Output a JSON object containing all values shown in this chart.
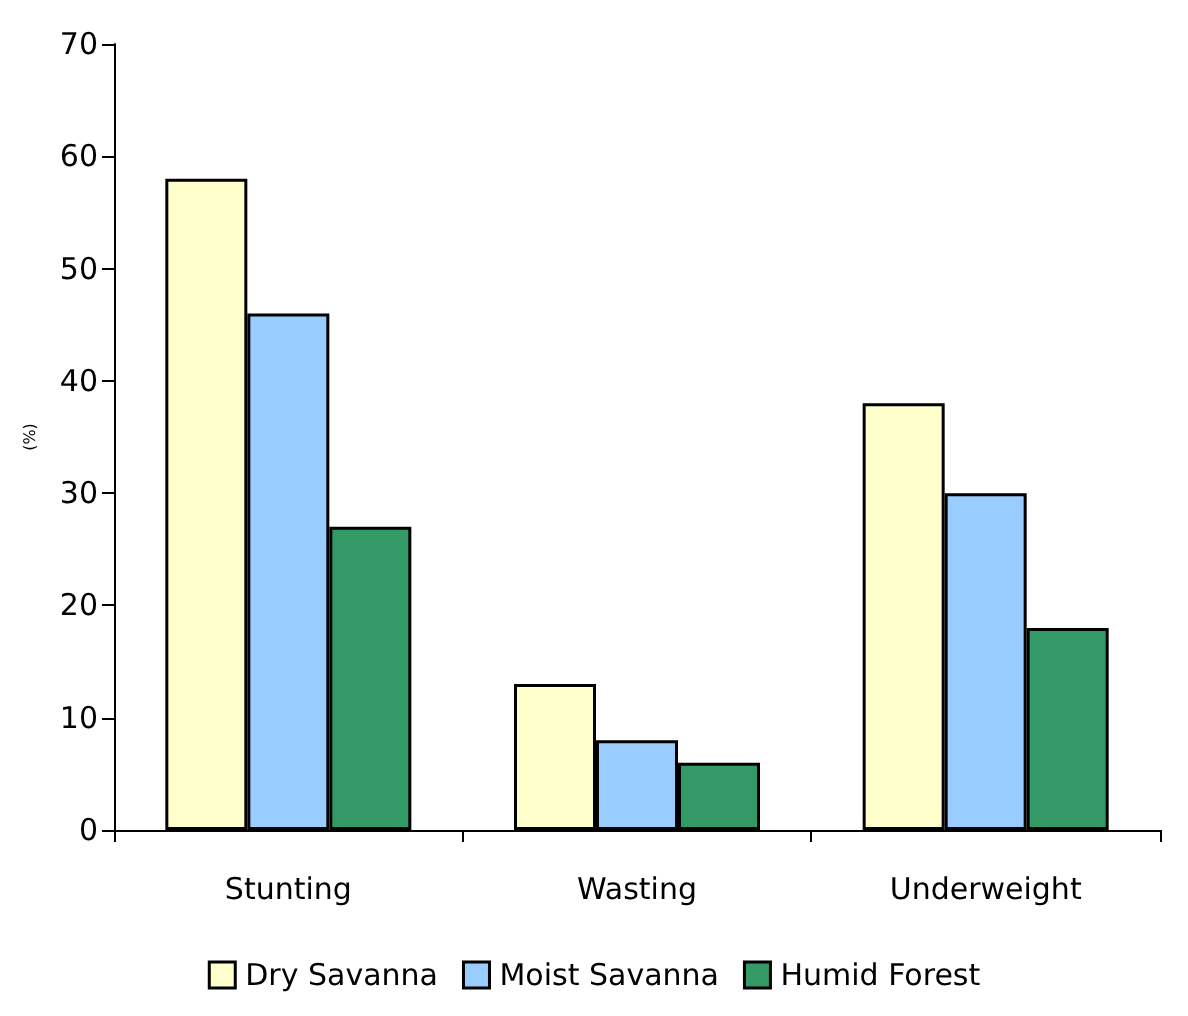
{
  "chart_data": {
    "type": "bar",
    "ylabel": "(%)",
    "categories": [
      "Stunting",
      "Wasting",
      "Underweight"
    ],
    "series": [
      {
        "name": "Dry Savanna",
        "color": "#ffffcc",
        "values": [
          58,
          13,
          38
        ]
      },
      {
        "name": "Moist Savanna",
        "color": "#99ccff",
        "values": [
          46,
          8,
          30
        ]
      },
      {
        "name": "Humid Forest",
        "color": "#339966",
        "values": [
          27,
          6,
          18
        ]
      }
    ],
    "ylim": [
      0,
      70
    ],
    "yticks": [
      0,
      10,
      20,
      30,
      40,
      50,
      60,
      70
    ],
    "grid": false,
    "legend": "bottom"
  }
}
